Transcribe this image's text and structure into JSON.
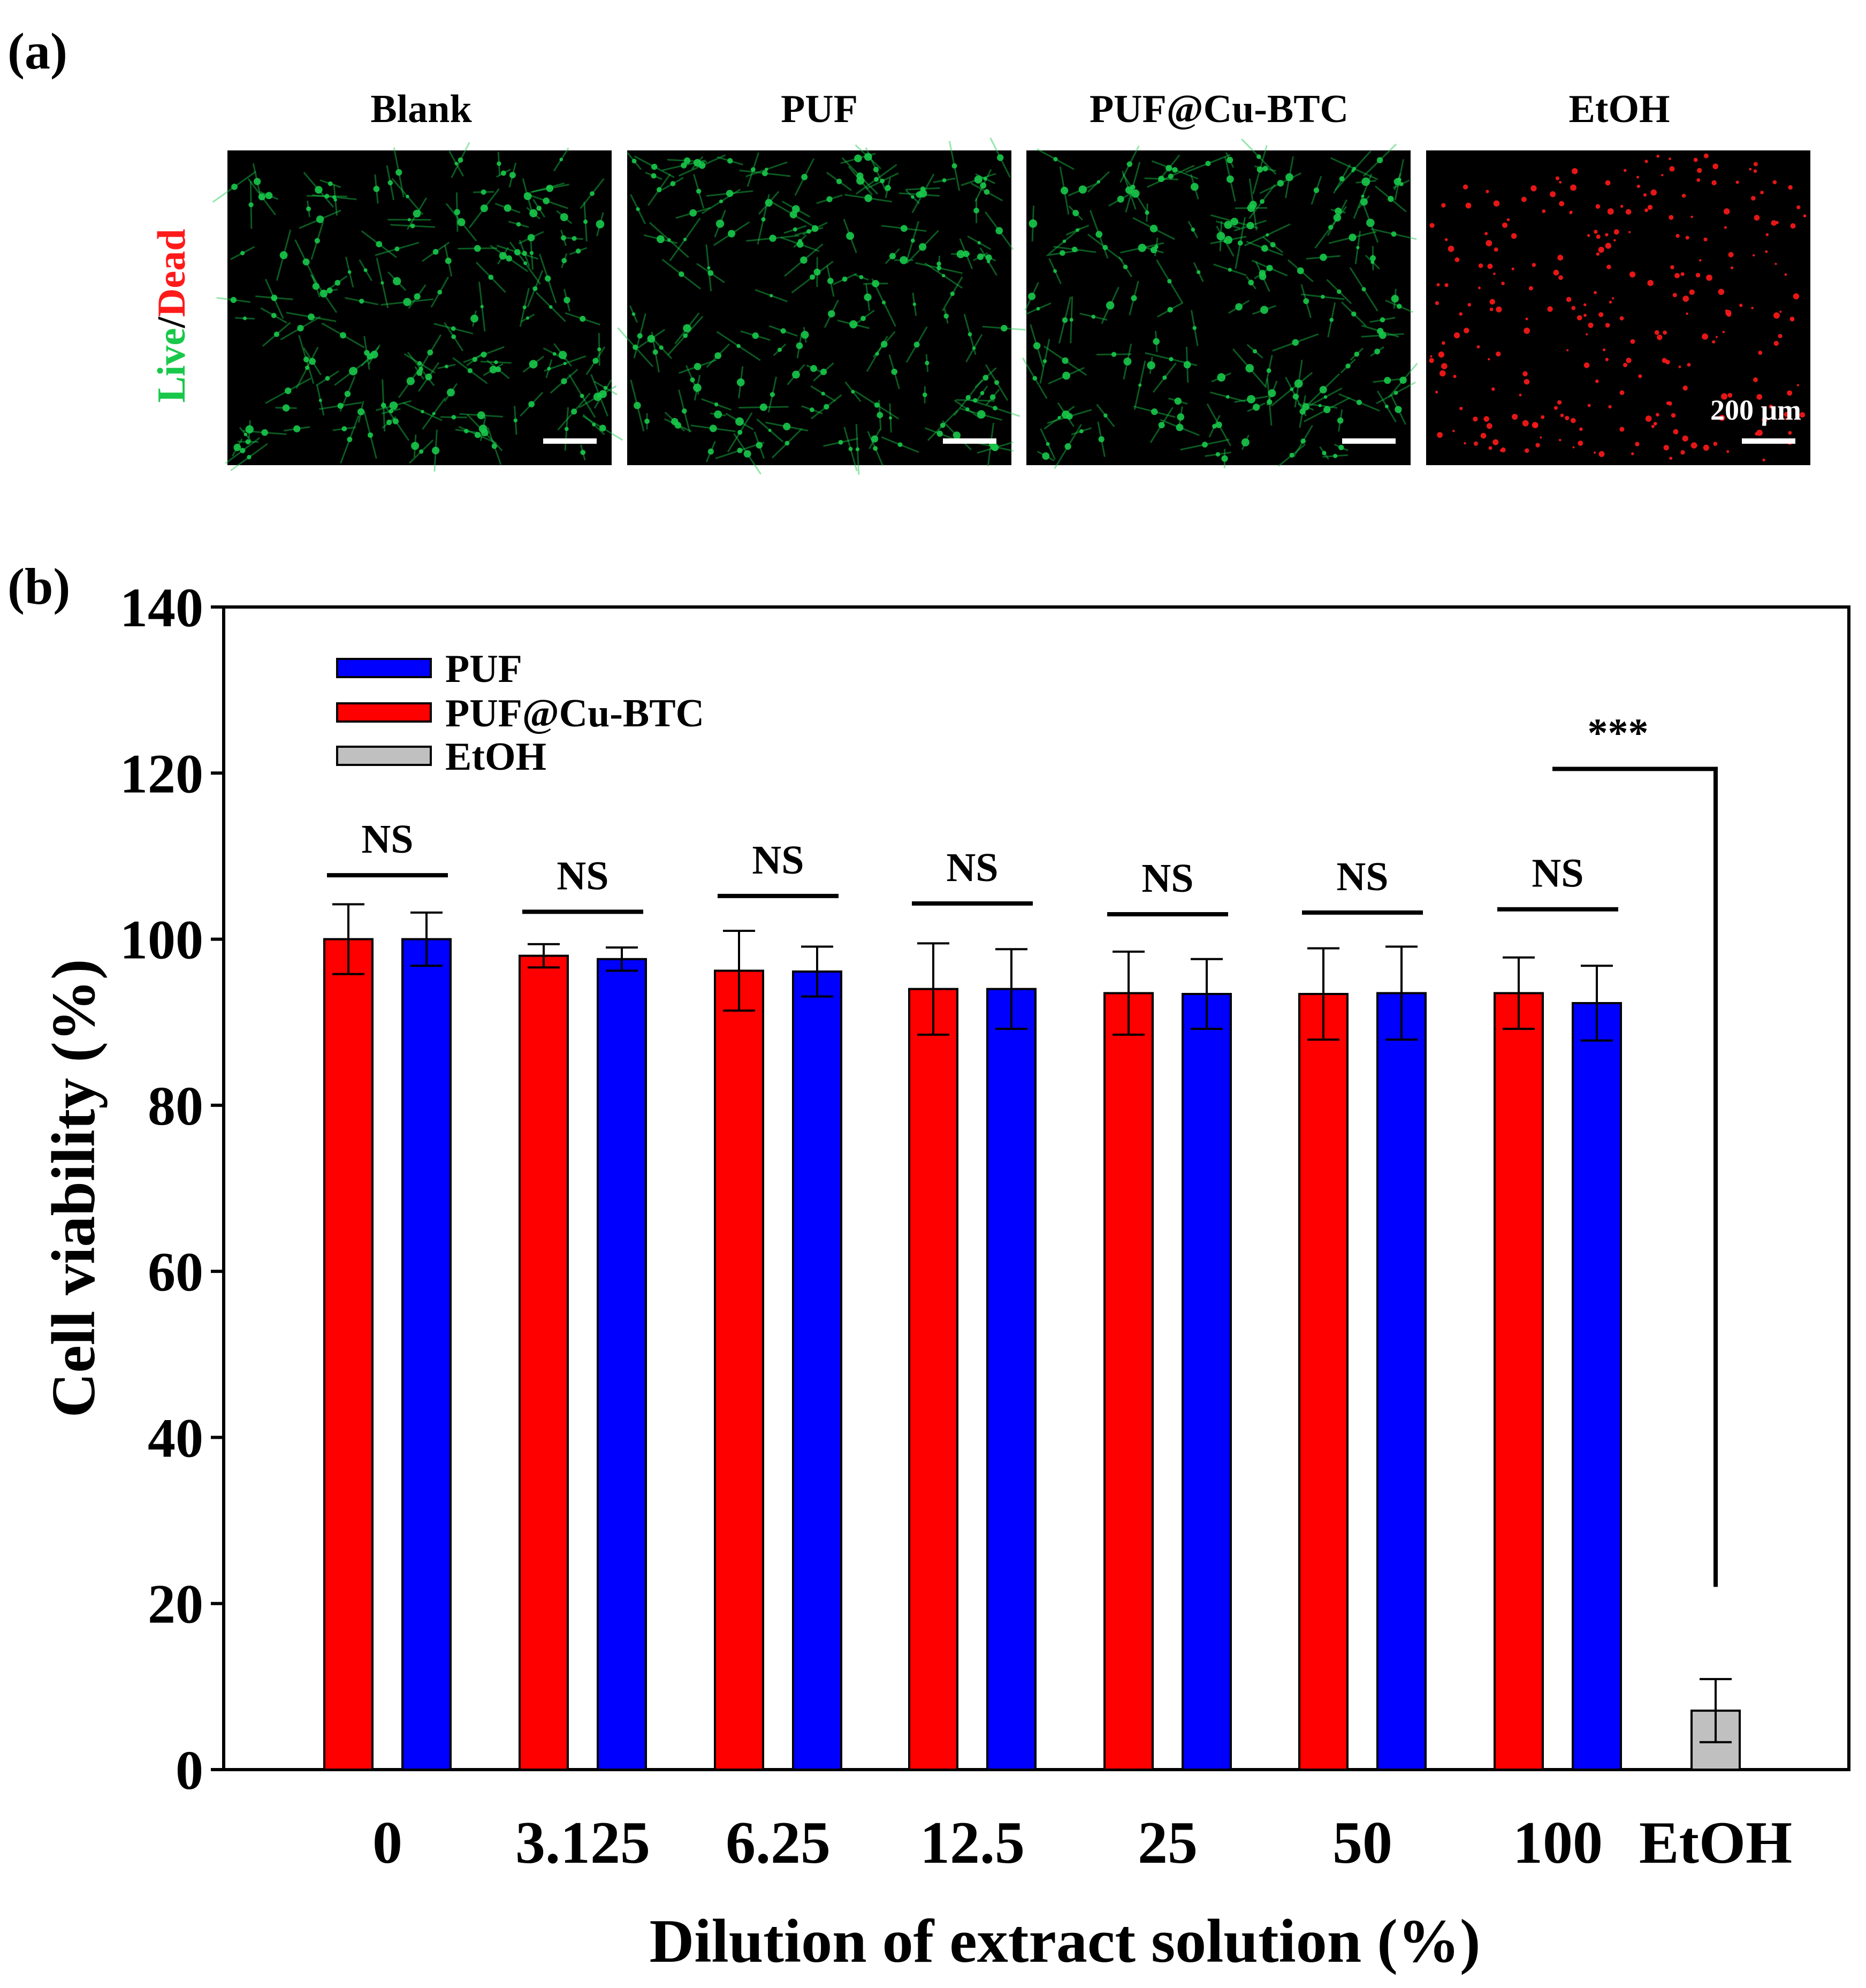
{
  "panel_a": {
    "label": "(a)",
    "columns": [
      "Blank",
      "PUF",
      "PUF@Cu-BTC",
      "EtOH"
    ],
    "side_label_live": "Live",
    "side_label_slash": "/",
    "side_label_dead": "Dead",
    "scale_bar_text": "200 μm",
    "colors": {
      "live": "#18c84a",
      "dead": "#ff1a1a",
      "background": "#000000"
    }
  },
  "panel_b": {
    "label": "(b)"
  },
  "chart_data": {
    "type": "bar",
    "title": "",
    "xlabel": "Dilution of extract solution (%)",
    "ylabel": "Cell viability (%)",
    "ylim": [
      0,
      140
    ],
    "yticks": [
      0,
      20,
      40,
      60,
      80,
      100,
      120,
      140
    ],
    "grid": false,
    "legend_position": "top-left",
    "legend": [
      "PUF",
      "PUF@Cu-BTC",
      "EtOH"
    ],
    "categories": [
      "0",
      "3.125",
      "6.25",
      "12.5",
      "25",
      "50",
      "100",
      "EtOH"
    ],
    "series": [
      {
        "name": "PUF@Cu-BTC",
        "color": "#ff0000",
        "values": [
          100,
          98,
          96.2,
          94,
          93.5,
          93.4,
          93.5,
          null
        ],
        "errors": [
          4.2,
          1.4,
          4.8,
          5.5,
          5,
          5.5,
          4.3,
          null
        ]
      },
      {
        "name": "PUF",
        "color": "#0000ff",
        "values": [
          100,
          97.6,
          96.1,
          94,
          93.4,
          93.5,
          92.3,
          null
        ],
        "errors": [
          3.2,
          1.4,
          3,
          4.8,
          4.2,
          5.6,
          4.5,
          null
        ]
      },
      {
        "name": "EtOH",
        "color": "#c0c0c0",
        "values": [
          null,
          null,
          null,
          null,
          null,
          null,
          null,
          7.1
        ],
        "errors": [
          null,
          null,
          null,
          null,
          null,
          null,
          null,
          3.8
        ]
      }
    ],
    "annotations": [
      {
        "category": "0",
        "text": "NS",
        "bracket_y": 107.7
      },
      {
        "category": "3.125",
        "text": "NS",
        "bracket_y": 103.3
      },
      {
        "category": "6.25",
        "text": "NS",
        "bracket_y": 105.2
      },
      {
        "category": "12.5",
        "text": "NS",
        "bracket_y": 104.3
      },
      {
        "category": "25",
        "text": "NS",
        "bracket_y": 103.0
      },
      {
        "category": "50",
        "text": "NS",
        "bracket_y": 103.2
      },
      {
        "category": "100",
        "text": "NS",
        "bracket_y": 103.6
      },
      {
        "from": "100",
        "to": "EtOH",
        "text": "***",
        "bracket_y": 120.5
      }
    ]
  }
}
